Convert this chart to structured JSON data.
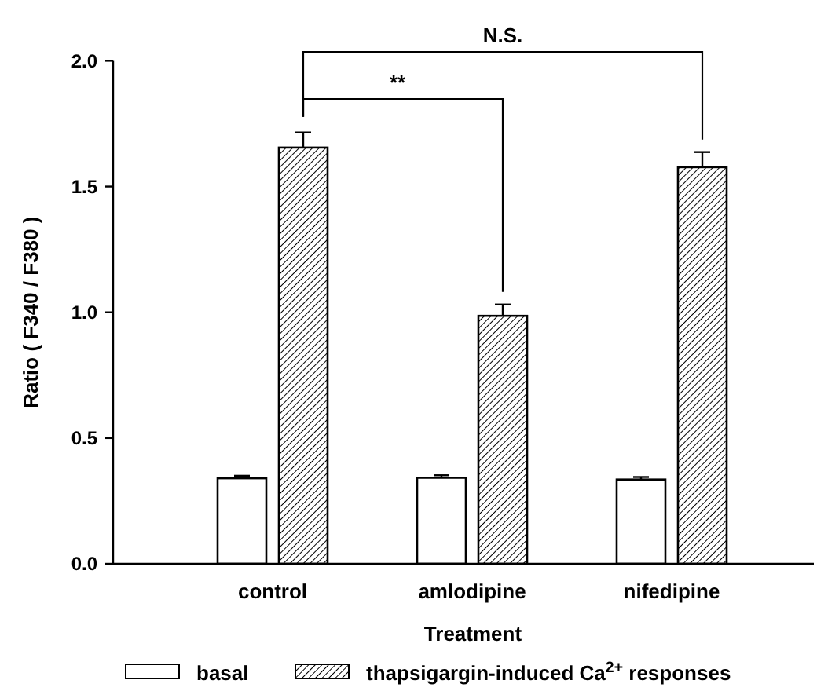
{
  "chart_data": {
    "type": "bar",
    "xlabel": "Treatment",
    "ylabel": "Ratio ( F340 / F380 )",
    "categories": [
      "control",
      "amlodipine",
      "nifedipine"
    ],
    "series": [
      {
        "name": "basal",
        "color": "#ffffff",
        "values": [
          0.34,
          0.342,
          0.335
        ],
        "errors": [
          0.01,
          0.01,
          0.01
        ]
      },
      {
        "name": "thapsigargin-induced Ca$^{2+}$ responses",
        "color": "#000000",
        "values": [
          1.655,
          0.986,
          1.577
        ],
        "errors": [
          0.06,
          0.045,
          0.06
        ]
      }
    ],
    "ylim": [
      0,
      2
    ],
    "yticks": [
      {
        "value": 0,
        "label": "0.0"
      },
      {
        "value": 0.5,
        "label": "0.5"
      },
      {
        "value": 1,
        "label": "1.0"
      },
      {
        "value": 1.5,
        "label": "1.5"
      },
      {
        "value": 2,
        "label": "2.0"
      }
    ],
    "grid": false,
    "legend": "bottom",
    "annotations": [
      "N.S.",
      "**"
    ]
  }
}
